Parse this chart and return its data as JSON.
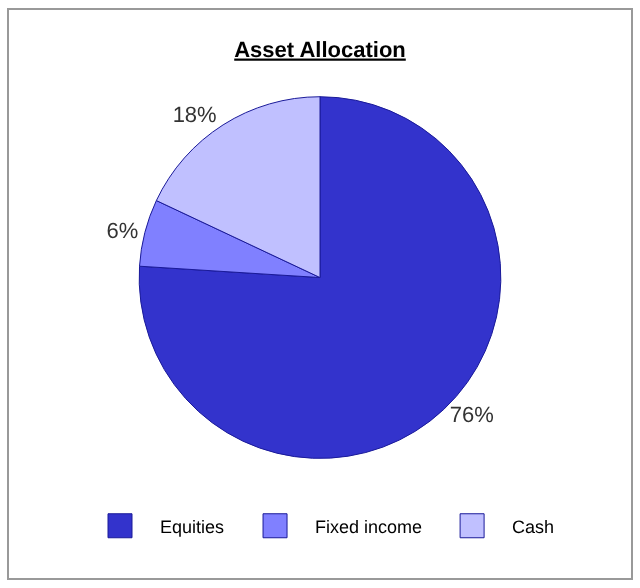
{
  "chart_data": {
    "type": "pie",
    "title": "Asset Allocation",
    "categories": [
      "Equities",
      "Fixed income",
      "Cash"
    ],
    "values": [
      76,
      6,
      18
    ],
    "value_labels": [
      "76%",
      "6%",
      "18%"
    ],
    "colors": [
      "#3333cc",
      "#8080ff",
      "#c0c0ff"
    ],
    "legend": "bottom"
  }
}
